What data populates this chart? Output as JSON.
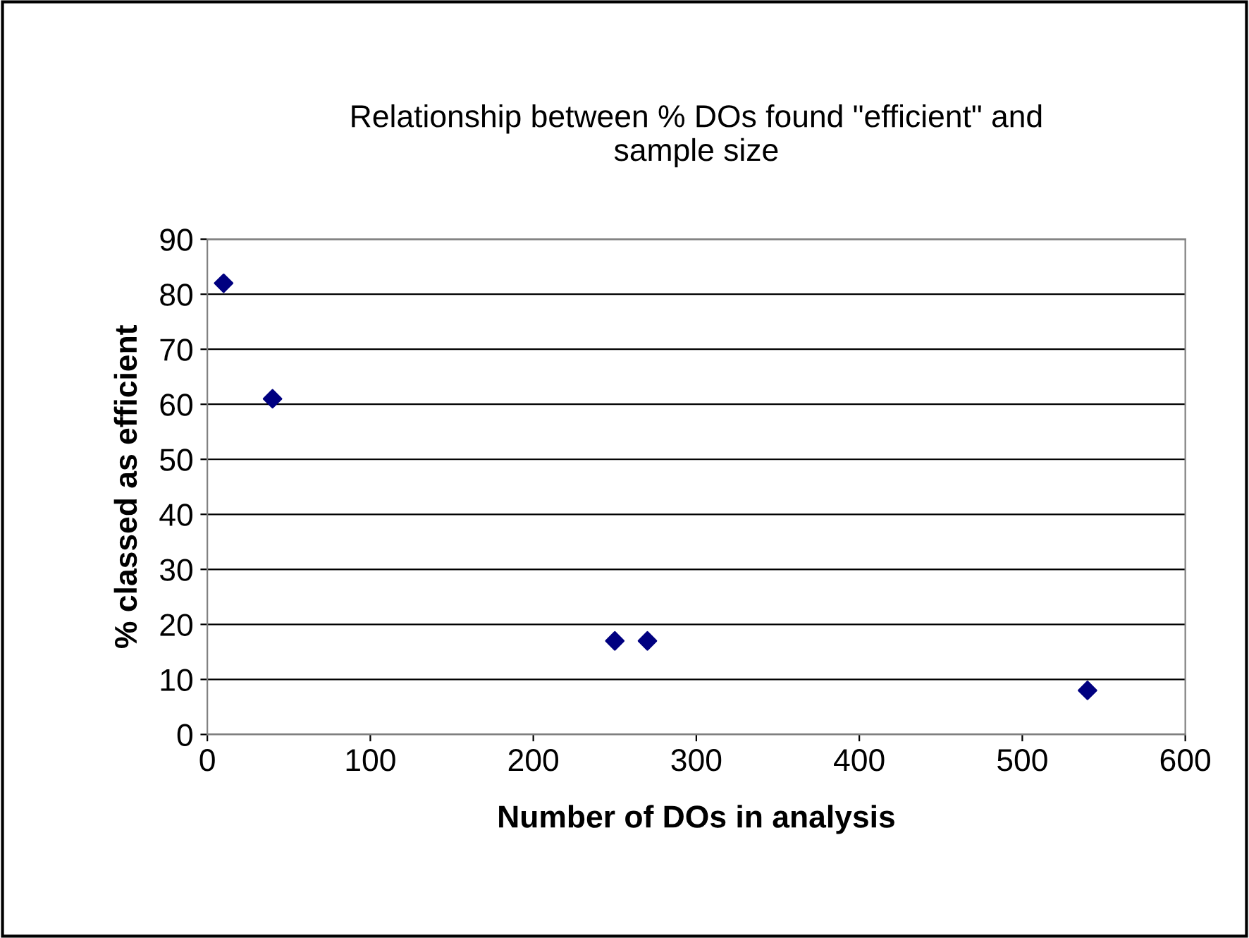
{
  "chart_data": {
    "type": "scatter",
    "title": "Relationship between % DOs found \"efficient\" and\nsample size",
    "xlabel": "Number of DOs in analysis",
    "ylabel": "% classed as efficient",
    "x": [
      10,
      40,
      250,
      270,
      540
    ],
    "series": [
      {
        "color": "#000080",
        "values": [
          82,
          61,
          17,
          17,
          8
        ]
      }
    ],
    "xlim": [
      0,
      600
    ],
    "xticks": [
      0,
      100,
      200,
      300,
      400,
      500,
      600
    ],
    "ylim": [
      0,
      90
    ],
    "yticks": [
      0,
      10,
      20,
      30,
      40,
      50,
      60,
      70,
      80,
      90
    ],
    "grid": "y",
    "marker": "diamond",
    "legend": false
  }
}
